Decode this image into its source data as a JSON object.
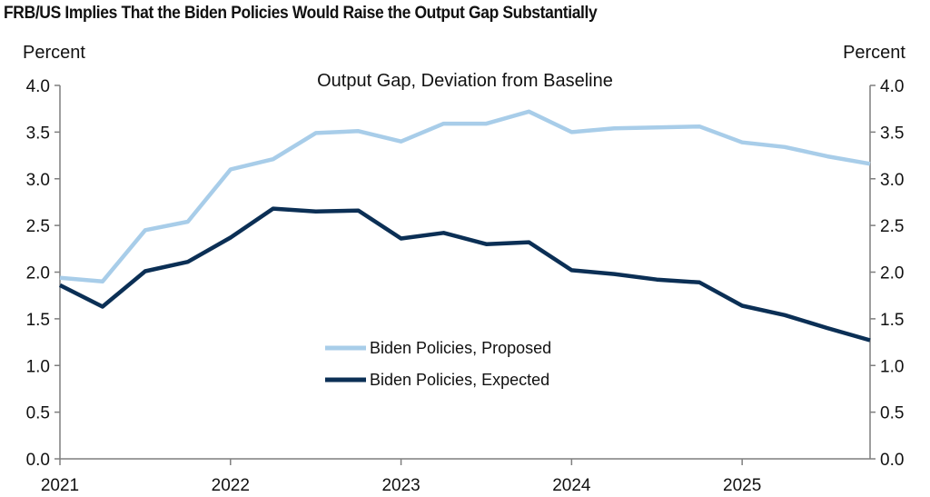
{
  "chart_data": {
    "type": "line",
    "title": "FRB/US Implies That the Biden Policies Would Raise the Output Gap Substantially",
    "subtitle": "Output Gap, Deviation from Baseline",
    "ylabel_left": "Percent",
    "ylabel_right": "Percent",
    "ylim": [
      0,
      4
    ],
    "yticks": [
      "0.0",
      "0.5",
      "1.0",
      "1.5",
      "2.0",
      "2.5",
      "3.0",
      "3.5",
      "4.0"
    ],
    "xlim": [
      2021.0,
      2025.75
    ],
    "xticks": [
      "2021",
      "2022",
      "2023",
      "2024",
      "2025"
    ],
    "grid": false,
    "legend_position": "bottom-center",
    "x": [
      2021.0,
      2021.25,
      2021.5,
      2021.75,
      2022.0,
      2022.25,
      2022.5,
      2022.75,
      2023.0,
      2023.25,
      2023.5,
      2023.75,
      2024.0,
      2024.25,
      2024.5,
      2024.75,
      2025.0,
      2025.25,
      2025.5,
      2025.75
    ],
    "series": [
      {
        "name": "Biden Policies, Proposed",
        "color": "#a8cde9",
        "values": [
          1.94,
          1.9,
          2.45,
          2.54,
          3.1,
          3.21,
          3.49,
          3.51,
          3.4,
          3.59,
          3.59,
          3.72,
          3.5,
          3.54,
          3.55,
          3.56,
          3.39,
          3.34,
          3.24,
          3.16
        ]
      },
      {
        "name": "Biden Policies, Expected",
        "color": "#0b2f55",
        "values": [
          1.86,
          1.63,
          2.01,
          2.11,
          2.37,
          2.68,
          2.65,
          2.66,
          2.36,
          2.42,
          2.3,
          2.32,
          2.02,
          1.98,
          1.92,
          1.89,
          1.64,
          1.54,
          1.4,
          1.27
        ]
      }
    ]
  }
}
